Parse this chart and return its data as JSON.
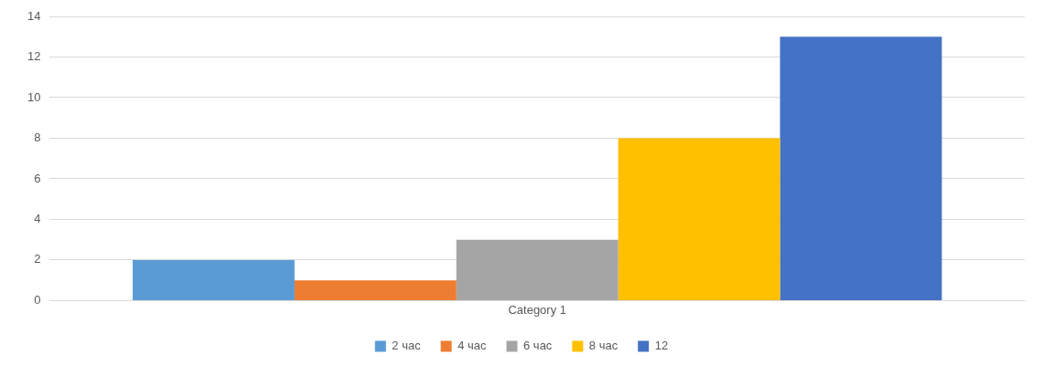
{
  "chart_data": {
    "type": "bar",
    "categories": [
      "Category 1"
    ],
    "series": [
      {
        "name": "2 час",
        "color": "#5b9bd5",
        "values": [
          2
        ]
      },
      {
        "name": "4 час",
        "color": "#ed7d31",
        "values": [
          1
        ]
      },
      {
        "name": "6 час",
        "color": "#a5a5a5",
        "values": [
          3
        ]
      },
      {
        "name": "8 час",
        "color": "#ffc000",
        "values": [
          8
        ]
      },
      {
        "name": "12",
        "color": "#4472c4",
        "values": [
          13
        ]
      }
    ],
    "ylim": [
      0,
      14
    ],
    "yticks": [
      0,
      2,
      4,
      6,
      8,
      10,
      12,
      14
    ],
    "grid": "y",
    "legend": "bottom"
  }
}
